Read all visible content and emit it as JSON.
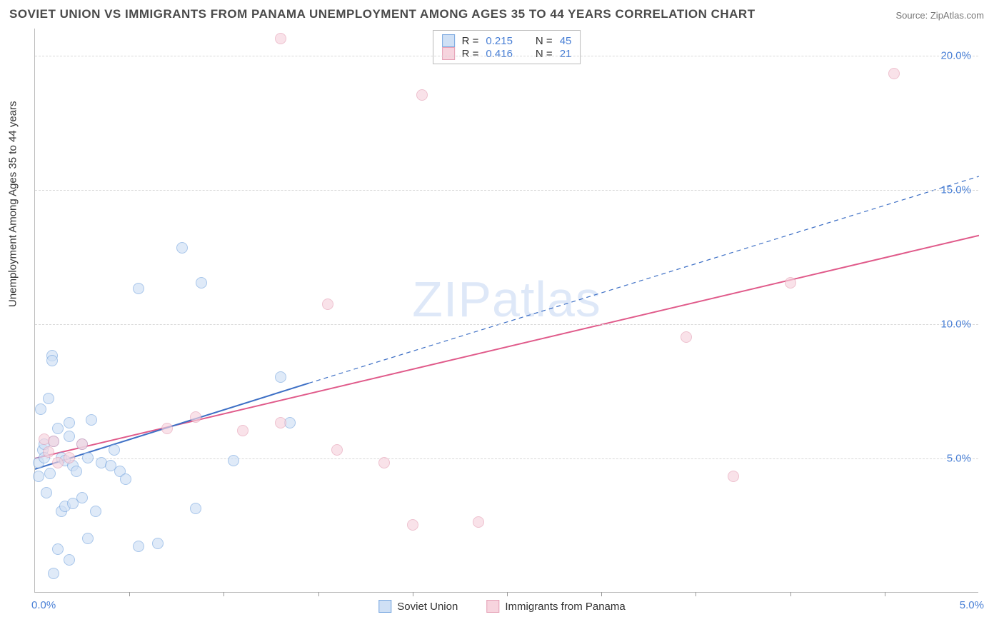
{
  "title": "SOVIET UNION VS IMMIGRANTS FROM PANAMA UNEMPLOYMENT AMONG AGES 35 TO 44 YEARS CORRELATION CHART",
  "source": "Source: ZipAtlas.com",
  "ylabel": "Unemployment Among Ages 35 to 44 years",
  "watermark_a": "ZIP",
  "watermark_b": "atlas",
  "chart": {
    "type": "scatter",
    "background_color": "#ffffff",
    "grid_color": "#d8d8d8",
    "axis_color": "#bbbbbb",
    "tick_label_color": "#4a80d6",
    "xlim": [
      0.0,
      5.0
    ],
    "ylim": [
      0.0,
      21.0
    ],
    "y_gridlines": [
      5.0,
      10.0,
      15.0,
      20.0
    ],
    "y_tick_labels": [
      "5.0%",
      "10.0%",
      "15.0%",
      "20.0%"
    ],
    "x_ticks": [
      0.5,
      1.0,
      1.5,
      2.0,
      2.5,
      3.0,
      3.5,
      4.0,
      4.5
    ],
    "x_tick_origin": "0.0%",
    "x_tick_max": "5.0%",
    "marker_radius": 8,
    "marker_stroke_width": 1
  },
  "series": [
    {
      "name": "Soviet Union",
      "fill": "#cfe0f5",
      "stroke": "#7aa8e0",
      "fill_opacity": 0.65,
      "R": "0.215",
      "N": "45",
      "trend": {
        "x1": 0.0,
        "y1": 4.6,
        "x2": 1.45,
        "y2": 7.8,
        "dashed_x2": 5.0,
        "dashed_y2": 15.5,
        "color": "#3d6fc5",
        "width": 2
      },
      "points": [
        [
          0.02,
          4.3
        ],
        [
          0.02,
          4.8
        ],
        [
          0.03,
          6.8
        ],
        [
          0.04,
          5.3
        ],
        [
          0.05,
          5.0
        ],
        [
          0.05,
          5.5
        ],
        [
          0.06,
          3.7
        ],
        [
          0.07,
          7.2
        ],
        [
          0.08,
          4.4
        ],
        [
          0.09,
          8.8
        ],
        [
          0.09,
          8.6
        ],
        [
          0.1,
          5.6
        ],
        [
          0.1,
          0.7
        ],
        [
          0.12,
          6.1
        ],
        [
          0.12,
          1.6
        ],
        [
          0.14,
          5.0
        ],
        [
          0.14,
          3.0
        ],
        [
          0.16,
          4.9
        ],
        [
          0.16,
          3.2
        ],
        [
          0.18,
          5.8
        ],
        [
          0.18,
          1.2
        ],
        [
          0.18,
          6.3
        ],
        [
          0.2,
          4.7
        ],
        [
          0.2,
          3.3
        ],
        [
          0.22,
          4.5
        ],
        [
          0.25,
          3.5
        ],
        [
          0.25,
          5.5
        ],
        [
          0.28,
          5.0
        ],
        [
          0.28,
          2.0
        ],
        [
          0.3,
          6.4
        ],
        [
          0.32,
          3.0
        ],
        [
          0.35,
          4.8
        ],
        [
          0.4,
          4.7
        ],
        [
          0.42,
          5.3
        ],
        [
          0.45,
          4.5
        ],
        [
          0.48,
          4.2
        ],
        [
          0.55,
          1.7
        ],
        [
          0.55,
          11.3
        ],
        [
          0.65,
          1.8
        ],
        [
          0.78,
          12.8
        ],
        [
          0.85,
          3.1
        ],
        [
          0.88,
          11.5
        ],
        [
          1.05,
          4.9
        ],
        [
          1.3,
          8.0
        ],
        [
          1.35,
          6.3
        ]
      ]
    },
    {
      "name": "Immigrants from Panama",
      "fill": "#f7d4de",
      "stroke": "#e5a1b6",
      "fill_opacity": 0.65,
      "R": "0.416",
      "N": "21",
      "trend": {
        "x1": 0.0,
        "y1": 5.0,
        "x2": 5.0,
        "y2": 13.3,
        "color": "#e05a8a",
        "width": 2
      },
      "points": [
        [
          0.05,
          5.7
        ],
        [
          0.07,
          5.2
        ],
        [
          0.1,
          5.6
        ],
        [
          0.12,
          4.8
        ],
        [
          0.18,
          5.0
        ],
        [
          0.25,
          5.5
        ],
        [
          0.7,
          6.1
        ],
        [
          0.85,
          6.5
        ],
        [
          1.1,
          6.0
        ],
        [
          1.3,
          6.3
        ],
        [
          1.3,
          20.6
        ],
        [
          1.55,
          10.7
        ],
        [
          1.6,
          5.3
        ],
        [
          1.85,
          4.8
        ],
        [
          2.0,
          2.5
        ],
        [
          2.05,
          18.5
        ],
        [
          2.35,
          2.6
        ],
        [
          3.45,
          9.5
        ],
        [
          3.7,
          4.3
        ],
        [
          4.0,
          11.5
        ],
        [
          4.55,
          19.3
        ]
      ]
    }
  ],
  "legend_top": {
    "r_label": "R =",
    "n_label": "N ="
  },
  "legend_bottom_labels": [
    "Soviet Union",
    "Immigrants from Panama"
  ]
}
